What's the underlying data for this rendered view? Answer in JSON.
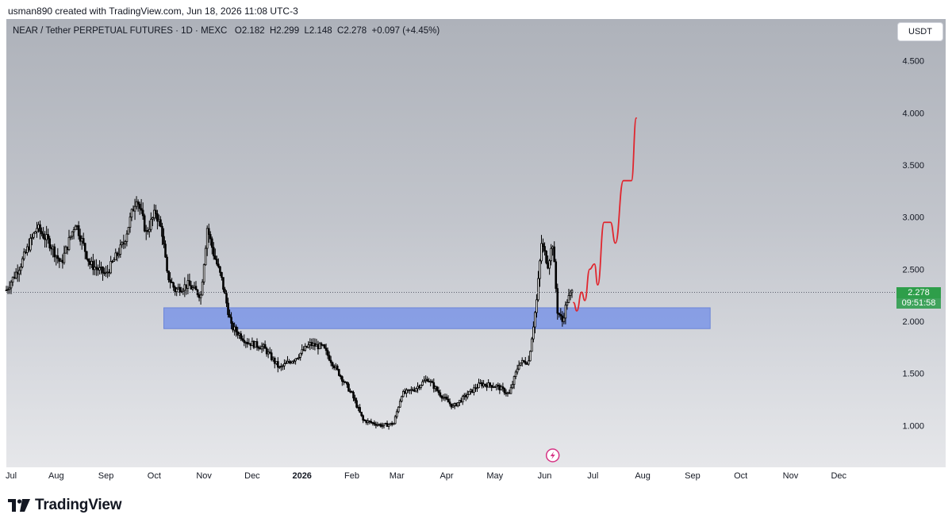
{
  "header": {
    "created_by": "usman890 created with TradingView.com, Jun 18, 2026 11:08 UTC-3"
  },
  "symbol_legend": {
    "text": "NEAR / Tether PERPETUAL FUTURES · 1D · MEXC   O2.182  H2.299  L2.148  C2.278  +0.097 (+4.45%)"
  },
  "currency_button": "USDT",
  "last_price": {
    "price": "2.278",
    "countdown": "09:51:58"
  },
  "brand": {
    "name": "TradingView"
  },
  "colors": {
    "zone": "#7b95e6",
    "projection": "#e0262e",
    "candle": "#000000",
    "last_price_bg": "#2e9e4a"
  },
  "icons": {
    "event_marker": "lightning-icon",
    "logo": "tradingview-logo-icon"
  },
  "chart_data": {
    "type": "candlestick",
    "symbol": "NEAR / Tether PERPETUAL FUTURES",
    "interval": "1D",
    "exchange": "MEXC",
    "ohlc_last": {
      "open": 2.182,
      "high": 2.299,
      "low": 2.148,
      "close": 2.278,
      "change": 0.097,
      "change_pct": 4.45
    },
    "ylim": [
      0.6,
      4.9
    ],
    "y_ticks": [
      "4.500",
      "4.000",
      "3.500",
      "3.000",
      "2.500",
      "2.000",
      "1.500",
      "1.000"
    ],
    "x_ticks": [
      "Jul",
      "Aug",
      "Sep",
      "Oct",
      "Nov",
      "Dec",
      "2026",
      "Feb",
      "Mar",
      "Apr",
      "May",
      "Jun",
      "Jul",
      "Aug",
      "Sep",
      "Oct",
      "Nov",
      "Dec"
    ],
    "x_range": [
      "2025-07-01",
      "2026-12-31"
    ],
    "price_path": [
      [
        "2025-07-01",
        2.3
      ],
      [
        "2025-07-10",
        2.55
      ],
      [
        "2025-07-20",
        2.9
      ],
      [
        "2025-07-28",
        2.75
      ],
      [
        "2025-08-04",
        2.55
      ],
      [
        "2025-08-13",
        2.95
      ],
      [
        "2025-08-22",
        2.55
      ],
      [
        "2025-09-01",
        2.45
      ],
      [
        "2025-09-12",
        2.75
      ],
      [
        "2025-09-20",
        3.2
      ],
      [
        "2025-09-26",
        2.85
      ],
      [
        "2025-10-02",
        3.05
      ],
      [
        "2025-10-06",
        2.85
      ],
      [
        "2025-10-09",
        2.45
      ],
      [
        "2025-10-14",
        2.3
      ],
      [
        "2025-10-22",
        2.35
      ],
      [
        "2025-10-30",
        2.25
      ],
      [
        "2025-11-03",
        2.9
      ],
      [
        "2025-11-07",
        2.65
      ],
      [
        "2025-11-12",
        2.4
      ],
      [
        "2025-11-18",
        1.95
      ],
      [
        "2025-11-28",
        1.8
      ],
      [
        "2025-12-08",
        1.75
      ],
      [
        "2025-12-18",
        1.55
      ],
      [
        "2025-12-28",
        1.65
      ],
      [
        "2026-01-06",
        1.78
      ],
      [
        "2026-01-14",
        1.75
      ],
      [
        "2026-01-22",
        1.55
      ],
      [
        "2026-02-01",
        1.3
      ],
      [
        "2026-02-08",
        1.05
      ],
      [
        "2026-02-20",
        1.0
      ],
      [
        "2026-02-27",
        1.02
      ],
      [
        "2026-03-04",
        1.3
      ],
      [
        "2026-03-12",
        1.35
      ],
      [
        "2026-03-20",
        1.45
      ],
      [
        "2026-03-28",
        1.3
      ],
      [
        "2026-04-05",
        1.18
      ],
      [
        "2026-04-14",
        1.3
      ],
      [
        "2026-04-22",
        1.4
      ],
      [
        "2026-05-02",
        1.38
      ],
      [
        "2026-05-10",
        1.3
      ],
      [
        "2026-05-16",
        1.6
      ],
      [
        "2026-05-22",
        1.62
      ],
      [
        "2026-05-27",
        2.2
      ],
      [
        "2026-05-30",
        2.75
      ],
      [
        "2026-06-03",
        2.55
      ],
      [
        "2026-06-06",
        2.75
      ],
      [
        "2026-06-09",
        2.1
      ],
      [
        "2026-06-12",
        2.0
      ],
      [
        "2026-06-15",
        2.2
      ],
      [
        "2026-06-18",
        2.278
      ]
    ],
    "demand_zone": {
      "from": "2025-10-07",
      "to": "2026-09-12",
      "low": 1.93,
      "high": 2.13
    },
    "projection_path": [
      [
        "2026-06-19",
        2.18
      ],
      [
        "2026-06-21",
        2.1
      ],
      [
        "2026-06-24",
        2.28
      ],
      [
        "2026-06-26",
        2.2
      ],
      [
        "2026-06-29",
        2.5
      ],
      [
        "2026-07-02",
        2.55
      ],
      [
        "2026-07-04",
        2.35
      ],
      [
        "2026-07-08",
        2.95
      ],
      [
        "2026-07-12",
        2.95
      ],
      [
        "2026-07-15",
        2.75
      ],
      [
        "2026-07-20",
        3.35
      ],
      [
        "2026-07-25",
        3.35
      ],
      [
        "2026-07-28",
        3.95
      ]
    ]
  }
}
